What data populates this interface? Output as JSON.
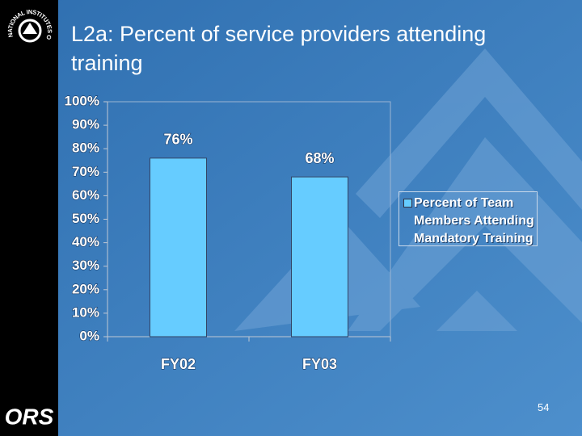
{
  "logo": {
    "ring_text": "NATIONAL INSTITUTES OF HEALTH",
    "org": "ORS"
  },
  "page_number": "54",
  "chart_data": {
    "type": "bar",
    "title": "L2a:  Percent of service providers attending training",
    "categories": [
      "FY02",
      "FY03"
    ],
    "series": [
      {
        "name": "Percent of Team Members Attending Mandatory Training",
        "color": "#66ccff",
        "values": [
          76,
          68
        ],
        "value_labels": [
          "76%",
          "68%"
        ]
      }
    ],
    "ylim": [
      0,
      100
    ],
    "yticks": [
      {
        "value": 0,
        "label": "0%"
      },
      {
        "value": 10,
        "label": "10%"
      },
      {
        "value": 20,
        "label": "20%"
      },
      {
        "value": 30,
        "label": "30%"
      },
      {
        "value": 40,
        "label": "40%"
      },
      {
        "value": 50,
        "label": "50%"
      },
      {
        "value": 60,
        "label": "60%"
      },
      {
        "value": 70,
        "label": "70%"
      },
      {
        "value": 80,
        "label": "80%"
      },
      {
        "value": 90,
        "label": "90%"
      },
      {
        "value": 100,
        "label": "100%"
      }
    ],
    "grid": false,
    "legend": "right"
  }
}
